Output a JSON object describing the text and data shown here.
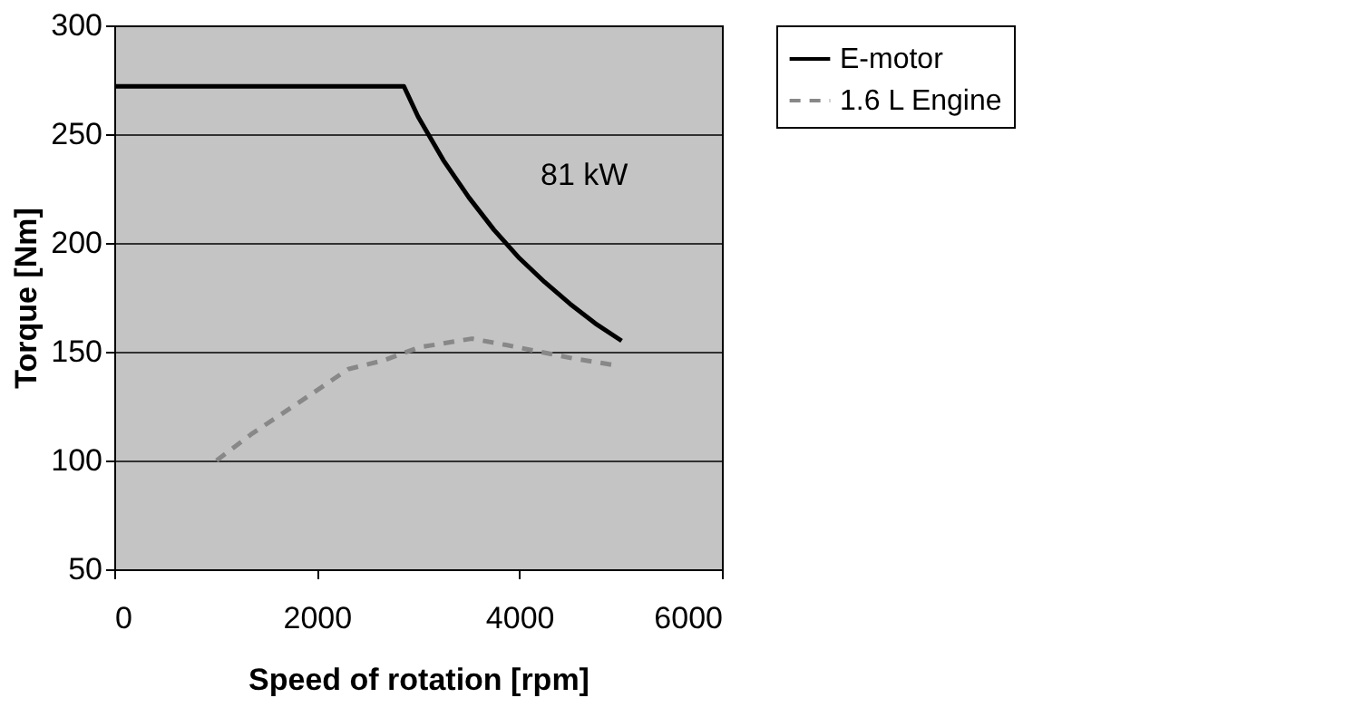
{
  "chart_data": {
    "type": "line",
    "xlabel": "Speed of rotation [rpm]",
    "ylabel": "Torque [Nm]",
    "xlim": [
      0,
      6000
    ],
    "xticks": [
      0,
      2000,
      4000,
      6000
    ],
    "ylim": [
      50,
      300
    ],
    "yticks": [
      50,
      100,
      150,
      200,
      250,
      300
    ],
    "grid": "y",
    "legend": "right",
    "series": [
      {
        "name": "E-motor",
        "color": "#000000",
        "line_style": "solid",
        "x": [
          0,
          2860,
          3000,
          3250,
          3500,
          3750,
          4000,
          4250,
          4500,
          4750,
          5010
        ],
        "values": [
          272,
          272,
          258,
          238,
          221,
          206,
          193,
          182,
          172,
          163,
          155
        ]
      },
      {
        "name": "1.6 L Engine",
        "color": "#888888",
        "line_style": "dashed",
        "x": [
          1010,
          1350,
          1640,
          1930,
          2310,
          2660,
          3010,
          3530,
          3880,
          4520,
          4920
        ],
        "values": [
          100,
          112,
          121,
          130,
          142,
          146,
          152,
          156,
          153,
          147,
          144
        ]
      }
    ],
    "annotations": [
      "81 kW"
    ]
  }
}
